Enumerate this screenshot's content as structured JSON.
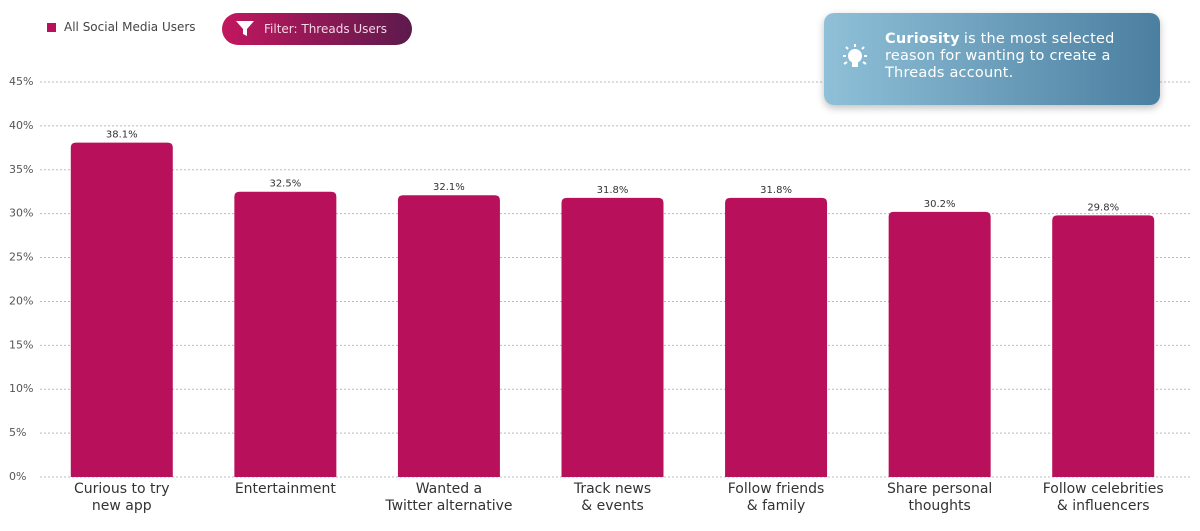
{
  "chart_data": {
    "type": "bar",
    "legend": "All Social Media Users",
    "filter": "Filter: Threads Users",
    "annotation": {
      "highlight": "Curiosity",
      "text": "is the most selected reason for wanting to create a Threads account."
    },
    "categories": [
      "Curious to try\nnew app",
      "Entertainment",
      "Wanted a\nTwitter alternative",
      "Track news\n& events",
      "Follow friends\n& family",
      "Share personal\nthoughts",
      "Follow celebrities\n& influencers"
    ],
    "values": [
      38.1,
      32.5,
      32.1,
      31.8,
      31.8,
      30.2,
      29.8
    ],
    "value_labels": [
      "38.1%",
      "32.5%",
      "32.1%",
      "31.8%",
      "31.8%",
      "30.2%",
      "29.8%"
    ],
    "color": "#b8105a",
    "ylim": [
      0,
      45
    ],
    "yticks": [
      {
        "value": 0,
        "label": "0%"
      },
      {
        "value": 5,
        "label": "5%"
      },
      {
        "value": 10,
        "label": "10%"
      },
      {
        "value": 15,
        "label": "15%"
      },
      {
        "value": 20,
        "label": "20%"
      },
      {
        "value": 25,
        "label": "25%"
      },
      {
        "value": 30,
        "label": "30%"
      },
      {
        "value": 35,
        "label": "35%"
      },
      {
        "value": 40,
        "label": "40%"
      },
      {
        "value": 45,
        "label": "45%"
      }
    ],
    "grid": true
  }
}
